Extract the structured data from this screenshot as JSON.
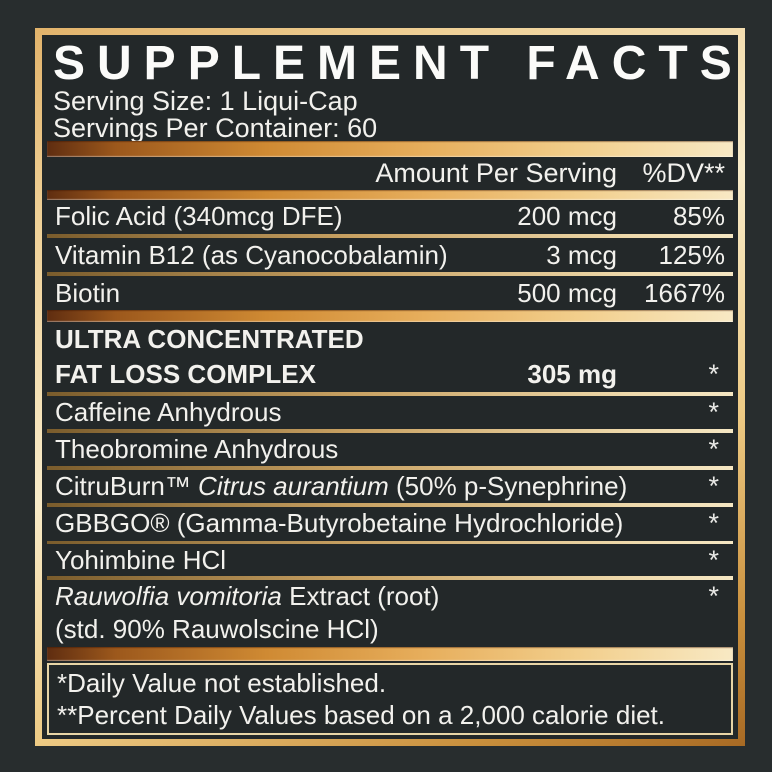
{
  "label": {
    "title": "SUPPLEMENT FACTS",
    "serving_size": "Serving Size: 1 Liqui-Cap",
    "servings_per_container": "Servings Per Container: 60",
    "columns": {
      "amount": "Amount Per Serving",
      "dv": "%DV**"
    },
    "vitamins": [
      {
        "name": "Folic Acid (340mcg DFE)",
        "amount": "200 mcg",
        "dv": "85%"
      },
      {
        "name": "Vitamin B12 (as Cyanocobalamin)",
        "amount": "3 mcg",
        "dv": "125%"
      },
      {
        "name": "Biotin",
        "amount": "500 mcg",
        "dv": "1667%"
      }
    ],
    "complex": {
      "title_line1": "ULTRA CONCENTRATED",
      "title_line2": "FAT LOSS COMPLEX",
      "amount": "305 mg",
      "dv": "*",
      "ingredients": [
        {
          "prefix": "Caffeine Anhydrous",
          "italic": "",
          "suffix": "",
          "dv": "*"
        },
        {
          "prefix": "Theobromine Anhydrous",
          "italic": "",
          "suffix": "",
          "dv": "*"
        },
        {
          "prefix": "CitruBurn™ ",
          "italic": "Citrus aurantium",
          "suffix": " (50% p-Synephrine)",
          "dv": "*"
        },
        {
          "prefix": "GBBGO® (Gamma-Butyrobetaine Hydrochloride)",
          "italic": "",
          "suffix": "",
          "dv": "*"
        },
        {
          "prefix": "Yohimbine HCl",
          "italic": "",
          "suffix": "",
          "dv": "*"
        },
        {
          "prefix": "",
          "italic": "Rauwolfia vomitoria",
          "suffix": " Extract (root)",
          "dv": "*",
          "line2": "(std. 90% Rauwolscine HCl)"
        }
      ]
    },
    "footnotes": [
      "*Daily Value not established.",
      "**Percent Daily Values based on a 2,000 calorie diet."
    ],
    "colors": {
      "background": "#282d2e",
      "panel": "#232829",
      "gold_light": "#f8ebc9",
      "gold_mid": "#e7ae5c",
      "gold_dark": "#9c581c",
      "text": "#f2f1ed"
    }
  }
}
